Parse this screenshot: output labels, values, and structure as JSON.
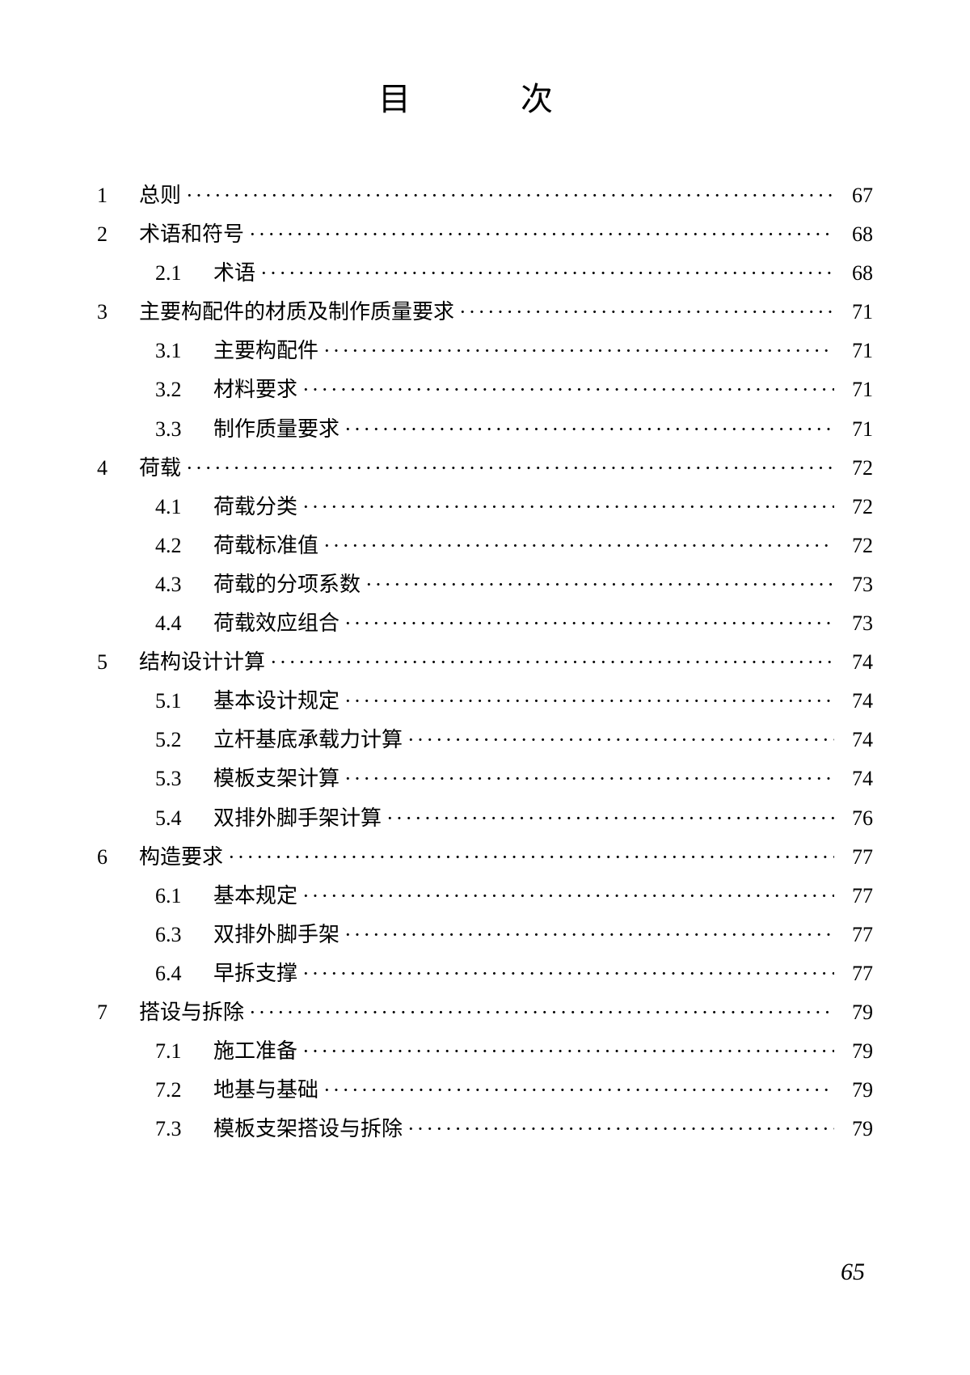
{
  "title": "目　次",
  "footer_page": "65",
  "entries": [
    {
      "type": "chapter",
      "num": "1",
      "label": "总则",
      "page": "67"
    },
    {
      "type": "chapter",
      "num": "2",
      "label": "术语和符号",
      "page": "68"
    },
    {
      "type": "section",
      "num": "2.1",
      "label": "术语",
      "page": "68"
    },
    {
      "type": "chapter",
      "num": "3",
      "label": "主要构配件的材质及制作质量要求",
      "page": "71"
    },
    {
      "type": "section",
      "num": "3.1",
      "label": "主要构配件",
      "page": "71"
    },
    {
      "type": "section",
      "num": "3.2",
      "label": "材料要求",
      "page": "71"
    },
    {
      "type": "section",
      "num": "3.3",
      "label": "制作质量要求",
      "page": "71"
    },
    {
      "type": "chapter",
      "num": "4",
      "label": "荷载",
      "page": "72"
    },
    {
      "type": "section",
      "num": "4.1",
      "label": "荷载分类",
      "page": "72"
    },
    {
      "type": "section",
      "num": "4.2",
      "label": "荷载标准值",
      "page": "72"
    },
    {
      "type": "section",
      "num": "4.3",
      "label": "荷载的分项系数",
      "page": "73"
    },
    {
      "type": "section",
      "num": "4.4",
      "label": "荷载效应组合",
      "page": "73"
    },
    {
      "type": "chapter",
      "num": "5",
      "label": "结构设计计算",
      "page": "74"
    },
    {
      "type": "section",
      "num": "5.1",
      "label": "基本设计规定",
      "page": "74"
    },
    {
      "type": "section",
      "num": "5.2",
      "label": "立杆基底承载力计算",
      "page": "74"
    },
    {
      "type": "section",
      "num": "5.3",
      "label": "模板支架计算",
      "page": "74"
    },
    {
      "type": "section",
      "num": "5.4",
      "label": "双排外脚手架计算",
      "page": "76"
    },
    {
      "type": "chapter",
      "num": "6",
      "label": "构造要求",
      "page": "77"
    },
    {
      "type": "section",
      "num": "6.1",
      "label": "基本规定",
      "page": "77"
    },
    {
      "type": "section",
      "num": "6.3",
      "label": "双排外脚手架",
      "page": "77"
    },
    {
      "type": "section",
      "num": "6.4",
      "label": "早拆支撑",
      "page": "77"
    },
    {
      "type": "chapter",
      "num": "7",
      "label": "搭设与拆除",
      "page": "79"
    },
    {
      "type": "section",
      "num": "7.1",
      "label": "施工准备",
      "page": "79"
    },
    {
      "type": "section",
      "num": "7.2",
      "label": "地基与基础",
      "page": "79"
    },
    {
      "type": "section",
      "num": "7.3",
      "label": "模板支架搭设与拆除",
      "page": "79"
    }
  ],
  "leader_dots": "······························································································"
}
